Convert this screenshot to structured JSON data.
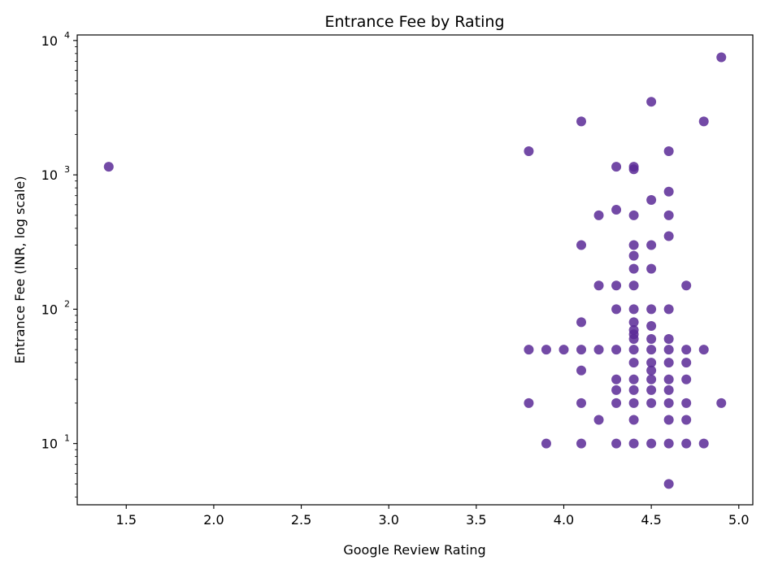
{
  "chart_data": {
    "type": "scatter",
    "title": "Entrance Fee by Rating",
    "xlabel": "Google Review Rating",
    "ylabel": "Entrance Fee (INR, log scale)",
    "xlim": [
      1.22,
      5.08
    ],
    "ylim": [
      3.5,
      11000
    ],
    "yscale": "log",
    "x_ticks": [
      1.5,
      2.0,
      2.5,
      3.0,
      3.5,
      4.0,
      4.5,
      5.0
    ],
    "x_tick_labels": [
      "1.5",
      "2.0",
      "2.5",
      "3.0",
      "3.5",
      "4.0",
      "4.5",
      "5.0"
    ],
    "y_ticks": [
      10,
      100,
      1000,
      10000
    ],
    "y_tick_labels": [
      {
        "base": "10",
        "exp": "1"
      },
      {
        "base": "10",
        "exp": "2"
      },
      {
        "base": "10",
        "exp": "3"
      },
      {
        "base": "10",
        "exp": "4"
      }
    ],
    "grid": false,
    "marker_color": "#5b2a96",
    "points": [
      [
        1.4,
        1150
      ],
      [
        3.8,
        1500
      ],
      [
        3.8,
        50
      ],
      [
        3.8,
        20
      ],
      [
        3.9,
        50
      ],
      [
        3.9,
        10
      ],
      [
        4.0,
        50
      ],
      [
        4.1,
        2500
      ],
      [
        4.1,
        300
      ],
      [
        4.1,
        80
      ],
      [
        4.1,
        50
      ],
      [
        4.1,
        35
      ],
      [
        4.1,
        20
      ],
      [
        4.1,
        10
      ],
      [
        4.2,
        500
      ],
      [
        4.2,
        150
      ],
      [
        4.2,
        50
      ],
      [
        4.2,
        15
      ],
      [
        4.3,
        1150
      ],
      [
        4.3,
        550
      ],
      [
        4.3,
        150
      ],
      [
        4.3,
        100
      ],
      [
        4.3,
        50
      ],
      [
        4.3,
        30
      ],
      [
        4.3,
        25
      ],
      [
        4.3,
        20
      ],
      [
        4.3,
        10
      ],
      [
        4.4,
        1150
      ],
      [
        4.4,
        1100
      ],
      [
        4.4,
        500
      ],
      [
        4.4,
        300
      ],
      [
        4.4,
        250
      ],
      [
        4.4,
        200
      ],
      [
        4.4,
        150
      ],
      [
        4.4,
        100
      ],
      [
        4.4,
        80
      ],
      [
        4.4,
        70
      ],
      [
        4.4,
        65
      ],
      [
        4.4,
        60
      ],
      [
        4.4,
        50
      ],
      [
        4.4,
        40
      ],
      [
        4.4,
        30
      ],
      [
        4.4,
        25
      ],
      [
        4.4,
        20
      ],
      [
        4.4,
        15
      ],
      [
        4.4,
        10
      ],
      [
        4.5,
        3500
      ],
      [
        4.5,
        650
      ],
      [
        4.5,
        300
      ],
      [
        4.5,
        200
      ],
      [
        4.5,
        100
      ],
      [
        4.5,
        75
      ],
      [
        4.5,
        60
      ],
      [
        4.5,
        50
      ],
      [
        4.5,
        40
      ],
      [
        4.5,
        35
      ],
      [
        4.5,
        30
      ],
      [
        4.5,
        25
      ],
      [
        4.5,
        20
      ],
      [
        4.5,
        10
      ],
      [
        4.6,
        1500
      ],
      [
        4.6,
        750
      ],
      [
        4.6,
        500
      ],
      [
        4.6,
        350
      ],
      [
        4.6,
        100
      ],
      [
        4.6,
        60
      ],
      [
        4.6,
        50
      ],
      [
        4.6,
        40
      ],
      [
        4.6,
        30
      ],
      [
        4.6,
        25
      ],
      [
        4.6,
        20
      ],
      [
        4.6,
        15
      ],
      [
        4.6,
        10
      ],
      [
        4.6,
        5
      ],
      [
        4.7,
        150
      ],
      [
        4.7,
        50
      ],
      [
        4.7,
        40
      ],
      [
        4.7,
        30
      ],
      [
        4.7,
        20
      ],
      [
        4.7,
        15
      ],
      [
        4.7,
        10
      ],
      [
        4.8,
        2500
      ],
      [
        4.8,
        50
      ],
      [
        4.8,
        10
      ],
      [
        4.9,
        7500
      ],
      [
        4.9,
        20
      ]
    ]
  }
}
